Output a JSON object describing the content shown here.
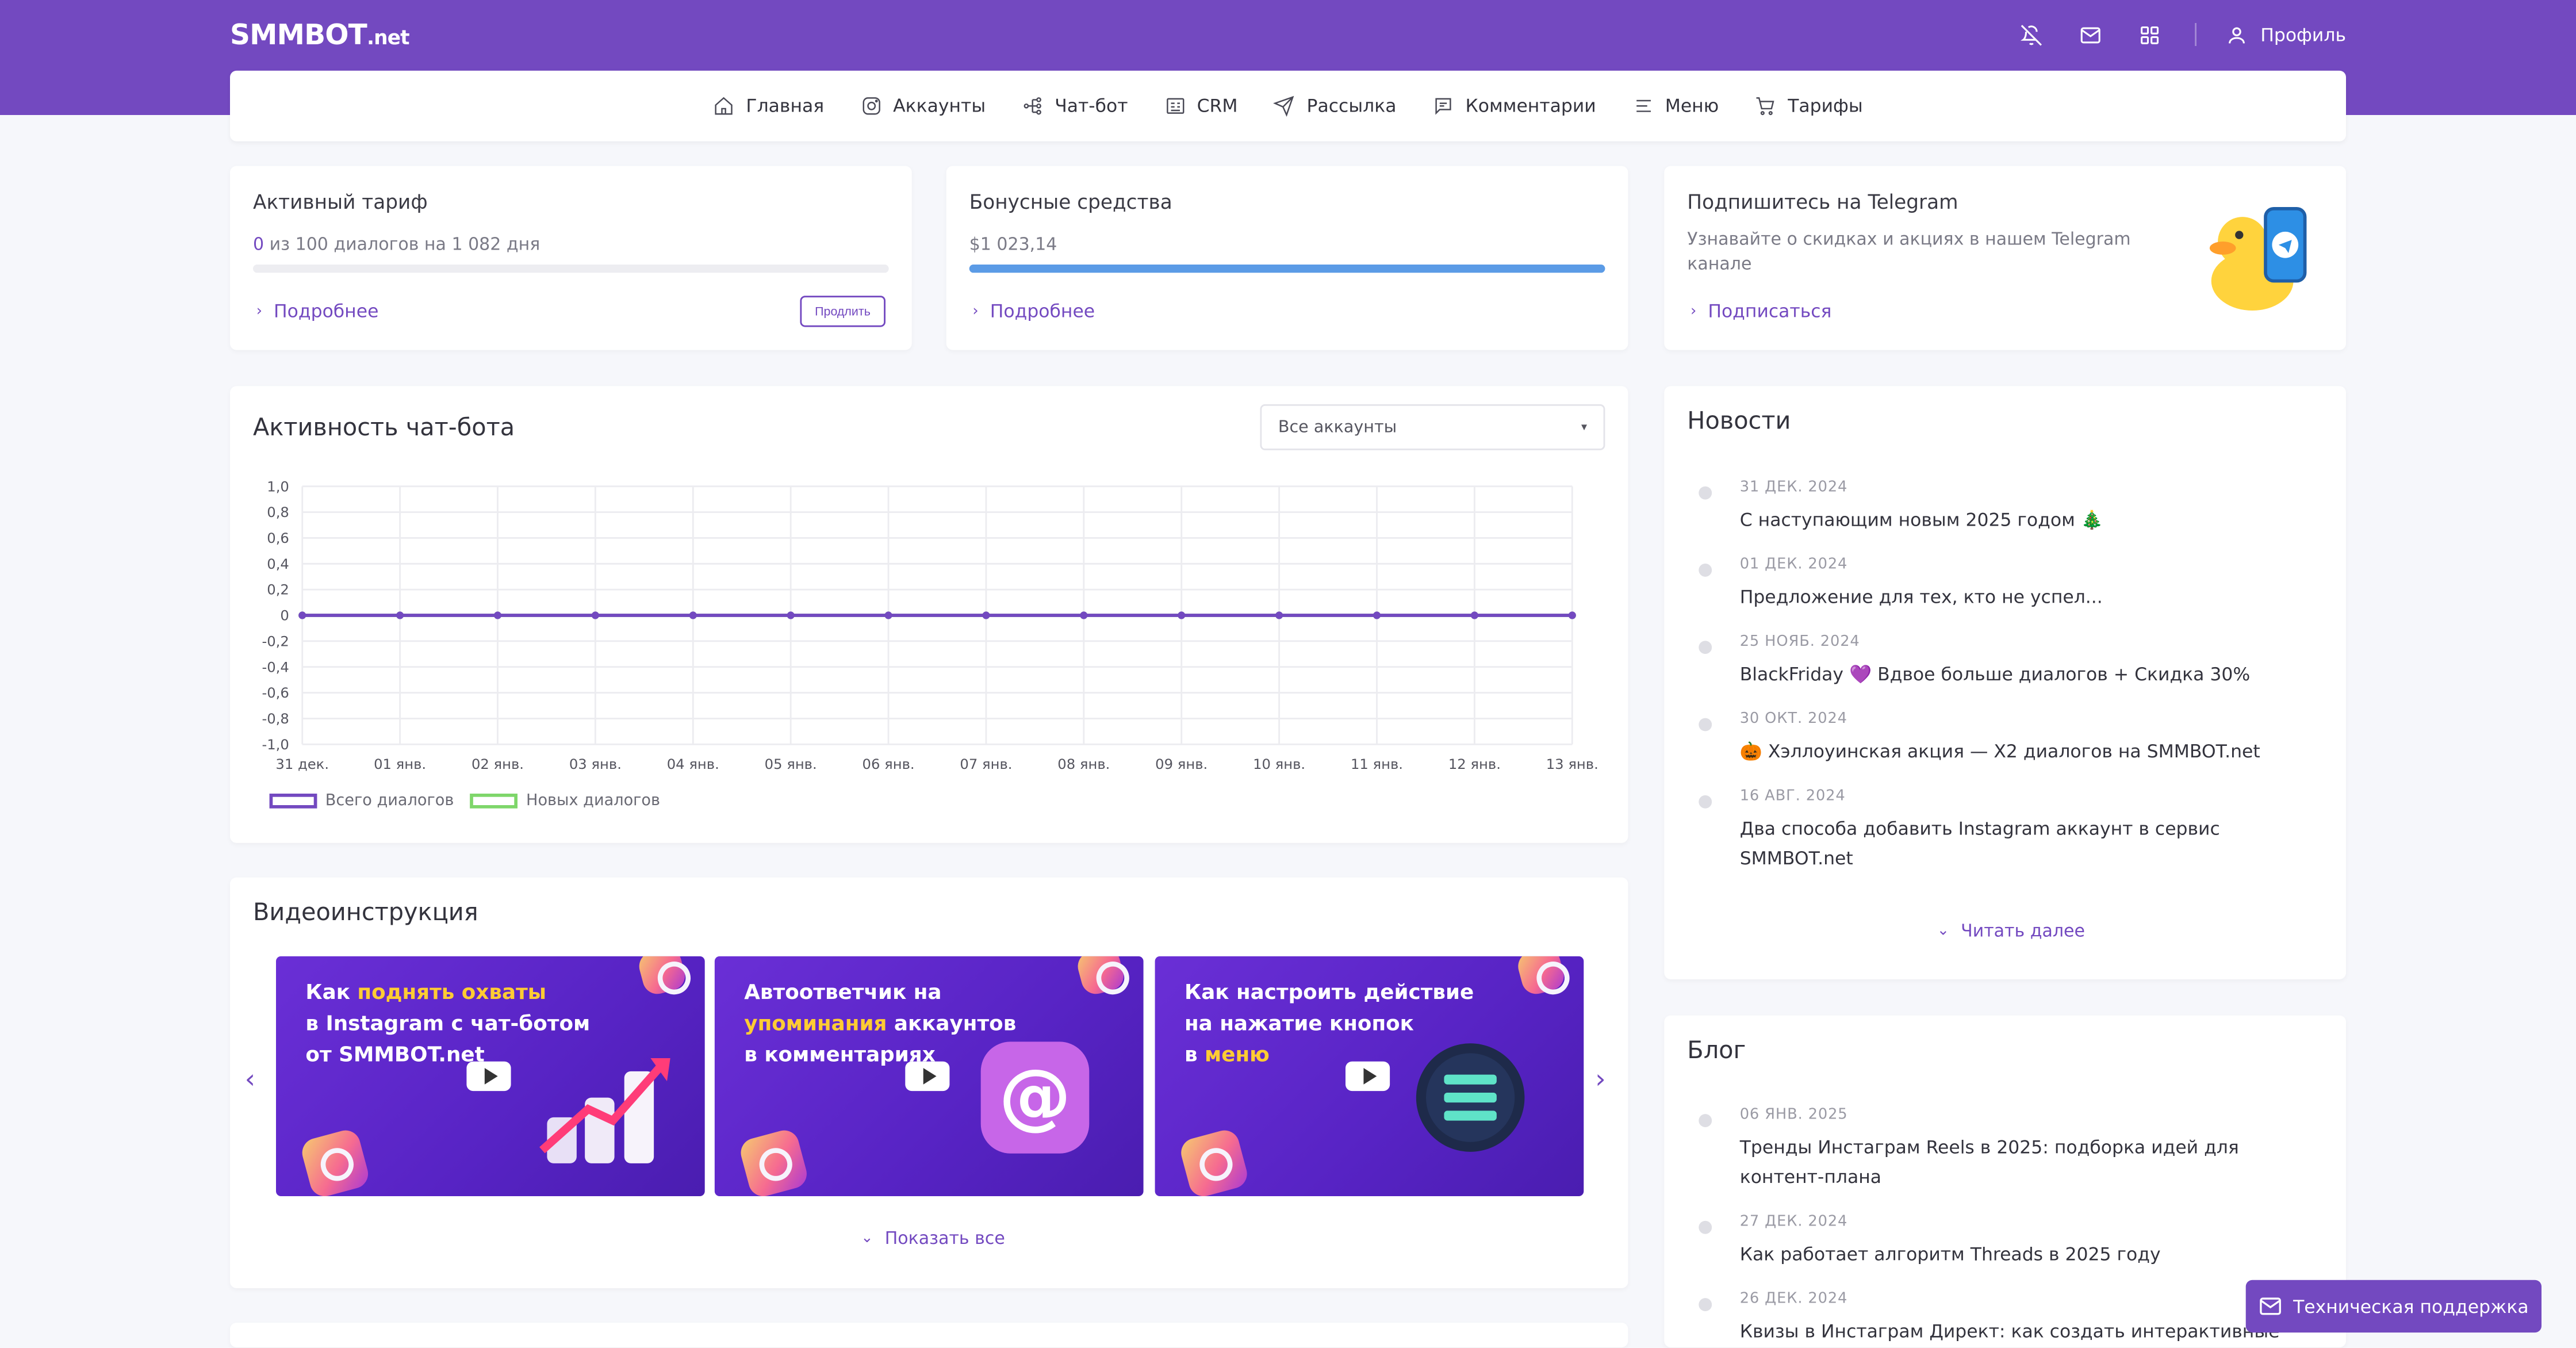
{
  "header": {
    "logo_main": "SMMBOT",
    "logo_suffix": ".net",
    "profile_label": "Профиль",
    "icons": [
      "bell-off-icon",
      "mail-icon",
      "grid-icon",
      "user-icon"
    ]
  },
  "nav": [
    {
      "label": "Главная",
      "icon": "home-icon"
    },
    {
      "label": "Аккаунты",
      "icon": "instagram-icon"
    },
    {
      "label": "Чат-бот",
      "icon": "flow-icon"
    },
    {
      "label": "CRM",
      "icon": "crm-icon"
    },
    {
      "label": "Рассылка",
      "icon": "send-icon"
    },
    {
      "label": "Комментарии",
      "icon": "comment-icon"
    },
    {
      "label": "Меню",
      "icon": "menu-icon"
    },
    {
      "label": "Тарифы",
      "icon": "cart-icon"
    }
  ],
  "tariff": {
    "title": "Активный тариф",
    "used": "0",
    "desc": " из 100 диалогов на 1 082 дня",
    "progress": 0,
    "link": "Подробнее",
    "button": "Продлить"
  },
  "bonus": {
    "title": "Бонусные средства",
    "amount": "$1 023,14",
    "progress": 1.0,
    "link": "Подробнее"
  },
  "telegram": {
    "title": "Подпишитесь на Telegram",
    "desc": "Узнавайте о скидках и акциях в нашем Telegram канале",
    "link": "Подписаться"
  },
  "activity": {
    "title": "Активность чат-бота",
    "select_value": "Все аккаунты"
  },
  "chart_data": {
    "type": "line",
    "categories": [
      "31 дек.",
      "01 янв.",
      "02 янв.",
      "03 янв.",
      "04 янв.",
      "05 янв.",
      "06 янв.",
      "07 янв.",
      "08 янв.",
      "09 янв.",
      "10 янв.",
      "11 янв.",
      "12 янв.",
      "13 янв."
    ],
    "series": [
      {
        "name": "Всего диалогов",
        "values": [
          0,
          0,
          0,
          0,
          0,
          0,
          0,
          0,
          0,
          0,
          0,
          0,
          0,
          0
        ],
        "color": "#7349c0"
      },
      {
        "name": "Новых диалогов",
        "values": [
          0,
          0,
          0,
          0,
          0,
          0,
          0,
          0,
          0,
          0,
          0,
          0,
          0,
          0
        ],
        "color": "#7ed66a"
      }
    ],
    "ylim": [
      -1.0,
      1.0
    ],
    "yticks": [
      "1,0",
      "0,8",
      "0,6",
      "0,4",
      "0,2",
      "0",
      "-0,2",
      "-0,4",
      "-0,6",
      "-0,8",
      "-1,0"
    ],
    "grid": true,
    "legend": "bottom-left"
  },
  "videos": {
    "title": "Видеоинструкция",
    "show_all": "Показать все",
    "items": [
      {
        "l1a": "Как ",
        "l1b": "поднять охваты",
        "l2": "в Instagram с чат-ботом",
        "l3": "от SMMBOT.net"
      },
      {
        "l1": "Автоответчик на",
        "l2a": "упоминания",
        "l2b": " аккаунтов",
        "l3": "в комментариях"
      },
      {
        "l1": "Как настроить действие",
        "l2": "на нажатие кнопок",
        "l3a": "в ",
        "l3b": "меню"
      }
    ]
  },
  "news": {
    "title": "Новости",
    "read_more": "Читать далее",
    "items": [
      {
        "date": "31 ДЕК. 2024",
        "text": "С наступающим новым 2025 годом 🎄"
      },
      {
        "date": "01 ДЕК. 2024",
        "text": "Предложение для тех, кто не успел..."
      },
      {
        "date": "25 НОЯБ. 2024",
        "text": "BlackFriday 💜 Вдвое больше диалогов + Скидка 30%"
      },
      {
        "date": "30 ОКТ. 2024",
        "text": "🎃 Хэллоуинская акция — X2 диалогов на SMMBOT.net"
      },
      {
        "date": "16 АВГ. 2024",
        "text": "Два способа добавить Instagram аккаунт в сервис SMMBOT.net"
      }
    ]
  },
  "blog": {
    "title": "Блог",
    "items": [
      {
        "date": "06 ЯНВ. 2025",
        "text": "Тренды Инстаграм Reels в 2025: подборка идей для контент-плана"
      },
      {
        "date": "27 ДЕК. 2024",
        "text": "Как работает алгоритм Threads в 2025 году"
      },
      {
        "date": "26 ДЕК. 2024",
        "text": "Квизы в Инстаграм Директ: как создать интерактивные"
      }
    ]
  },
  "support_label": "Техническая поддержка",
  "colors": {
    "brand": "#7349c0",
    "bonus_bar": "#5b9be6",
    "highlight": "#ffcc33",
    "new_dialogs": "#7ed66a"
  }
}
